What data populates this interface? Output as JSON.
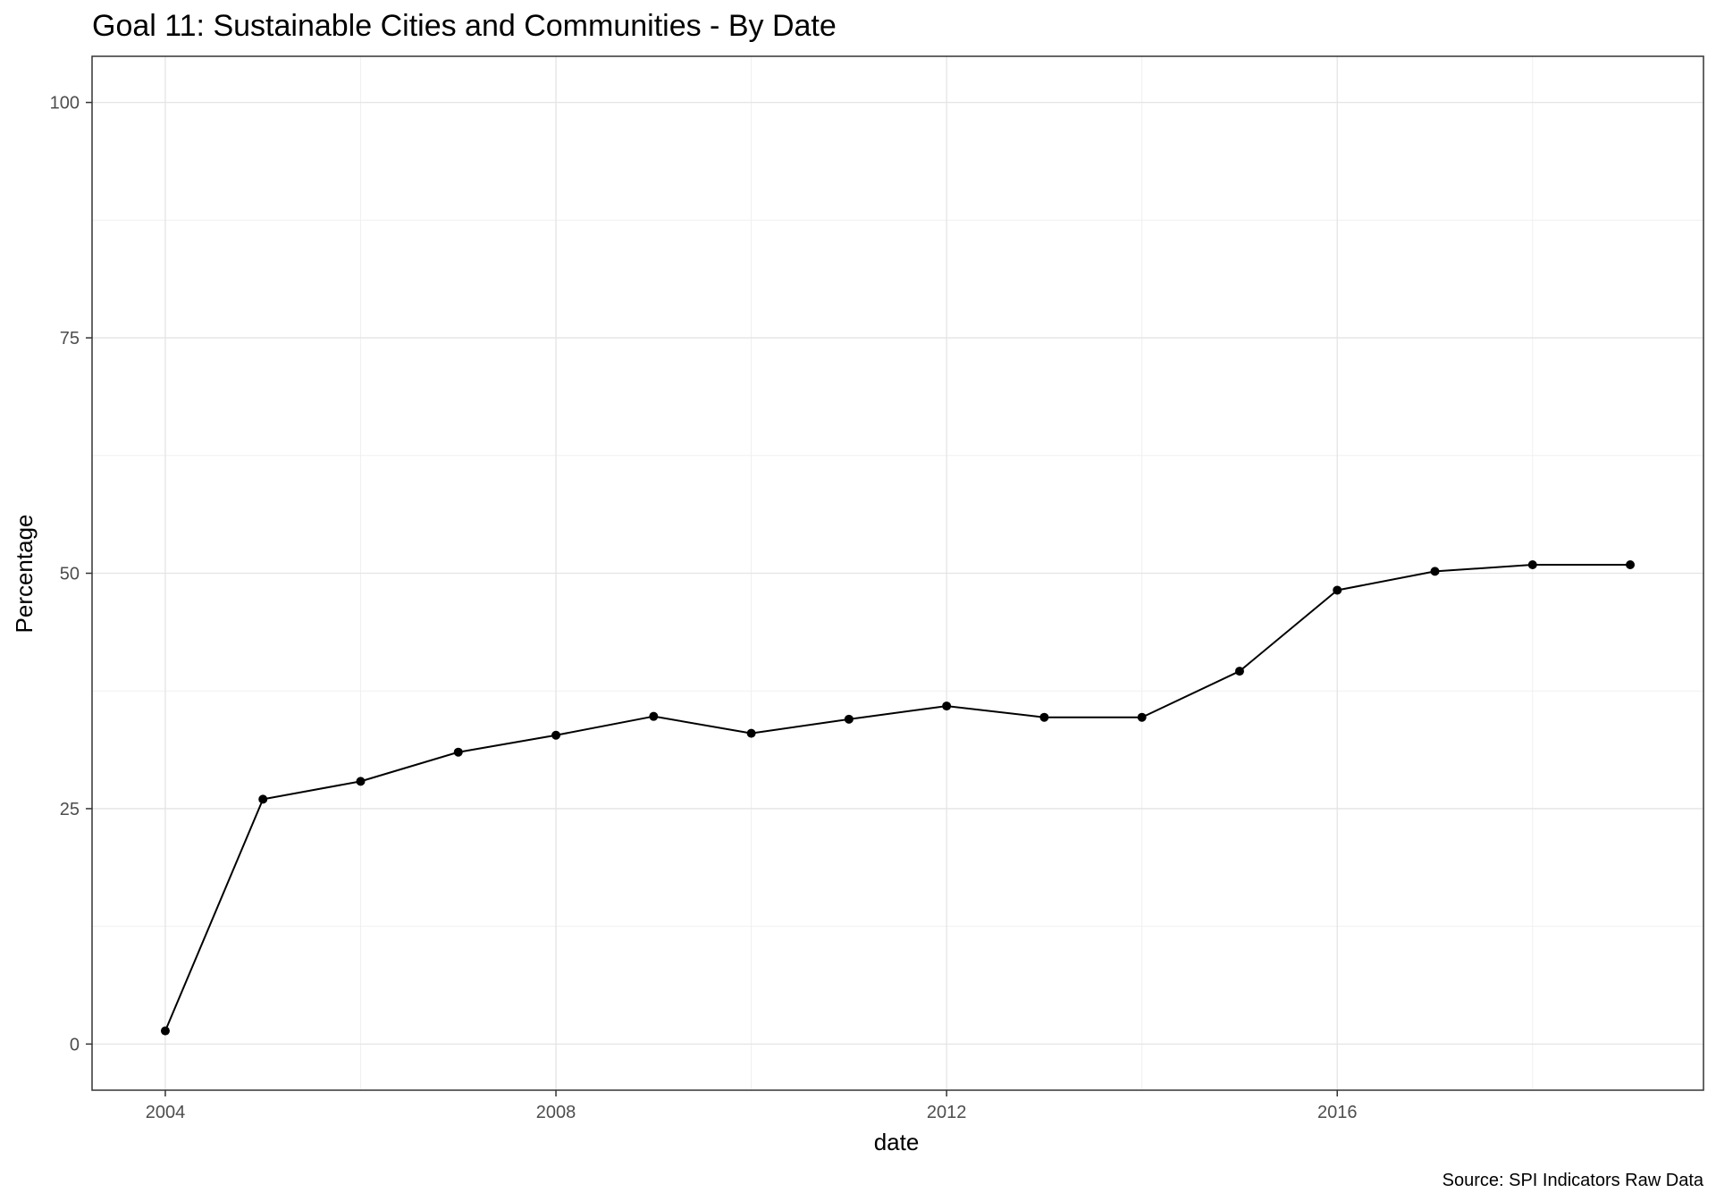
{
  "chart_data": {
    "type": "line",
    "title": "Goal 11: Sustainable Cities and Communities - By Date",
    "xlabel": "date",
    "ylabel": "Percentage",
    "caption": "Source: SPI Indicators Raw Data",
    "xlim": [
      2003.25,
      2019.75
    ],
    "ylim": [
      -4.9,
      104.9
    ],
    "x_ticks": [
      2004,
      2008,
      2012,
      2016
    ],
    "x_tick_labels": [
      "2004",
      "2008",
      "2012",
      "2016"
    ],
    "x_minor": [
      2006,
      2010,
      2014,
      2018
    ],
    "y_ticks": [
      0,
      25,
      50,
      75,
      100
    ],
    "y_tick_labels": [
      "0",
      "25",
      "50",
      "75",
      "100"
    ],
    "y_minor": [
      12.5,
      37.5,
      62.5,
      87.5
    ],
    "grid": true,
    "series": [
      {
        "x": [
          2004,
          2005,
          2006,
          2007,
          2008,
          2009,
          2010,
          2011,
          2012,
          2013,
          2014,
          2015,
          2016,
          2017,
          2018,
          2019
        ],
        "y": [
          1.4,
          26.0,
          27.9,
          31.0,
          32.8,
          34.8,
          33.0,
          34.5,
          35.9,
          34.7,
          34.7,
          39.6,
          48.2,
          50.2,
          50.9,
          50.9
        ],
        "color": "#000000"
      }
    ]
  }
}
